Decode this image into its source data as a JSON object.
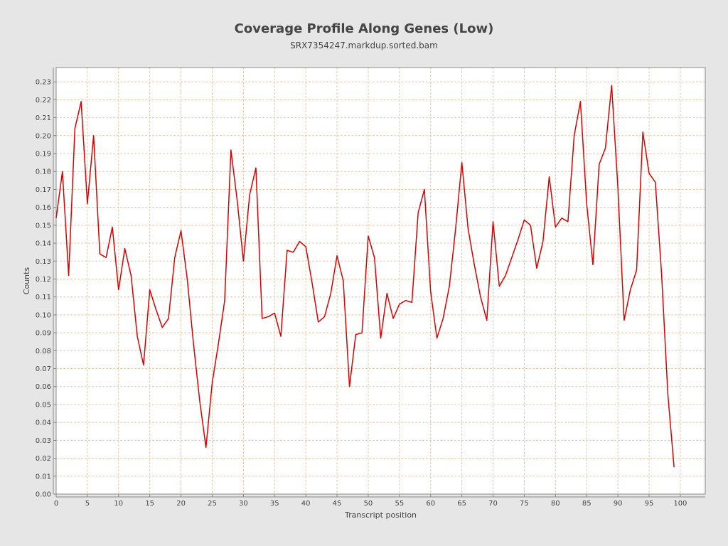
{
  "chart_data": {
    "type": "line",
    "title": "Coverage Profile Along Genes (Low)",
    "subtitle": "SRX7354247.markdup.sorted.bam",
    "xlabel": "Transcript position",
    "ylabel": "Counts",
    "xlim": [
      0,
      104
    ],
    "ylim": [
      0,
      0.238
    ],
    "x_ticks": [
      0,
      5,
      10,
      15,
      20,
      25,
      30,
      35,
      40,
      45,
      50,
      55,
      60,
      65,
      70,
      75,
      80,
      85,
      90,
      95,
      100
    ],
    "y_ticks": [
      "0.00",
      "0.01",
      "0.02",
      "0.03",
      "0.04",
      "0.05",
      "0.06",
      "0.07",
      "0.08",
      "0.09",
      "0.10",
      "0.11",
      "0.12",
      "0.13",
      "0.14",
      "0.15",
      "0.16",
      "0.17",
      "0.18",
      "0.19",
      "0.20",
      "0.21",
      "0.22",
      "0.23"
    ],
    "grid": true,
    "colors": {
      "line": "#dd0000",
      "grid": "#f0c8a8",
      "plot_background": "#ffffff",
      "page_background": "#e6e6e6"
    },
    "series": [
      {
        "x": [
          0,
          1,
          2,
          3,
          4,
          5,
          6,
          7,
          8,
          9,
          10,
          11,
          12,
          13,
          14,
          15,
          16,
          17,
          18,
          19,
          20,
          21,
          22,
          23,
          24,
          25,
          26,
          27,
          28,
          29,
          30,
          31,
          32,
          33,
          34,
          35,
          36,
          37,
          38,
          39,
          40,
          41,
          42,
          43,
          44,
          45,
          46,
          47,
          48,
          49,
          50,
          51,
          52,
          53,
          54,
          55,
          56,
          57,
          58,
          59,
          60,
          61,
          62,
          63,
          64,
          65,
          66,
          67,
          68,
          69,
          70,
          71,
          72,
          73,
          74,
          75,
          76,
          77,
          78,
          79,
          80,
          81,
          82,
          83,
          84,
          85,
          86,
          87,
          88,
          89,
          90,
          91,
          92,
          93,
          94,
          95,
          96,
          97,
          98,
          99
        ],
        "values": [
          0.154,
          0.18,
          0.122,
          0.204,
          0.219,
          0.162,
          0.2,
          0.134,
          0.132,
          0.149,
          0.114,
          0.137,
          0.122,
          0.088,
          0.072,
          0.114,
          0.103,
          0.093,
          0.098,
          0.132,
          0.147,
          0.12,
          0.084,
          0.052,
          0.026,
          0.062,
          0.084,
          0.108,
          0.192,
          0.164,
          0.13,
          0.167,
          0.182,
          0.098,
          0.099,
          0.101,
          0.088,
          0.136,
          0.135,
          0.141,
          0.138,
          0.118,
          0.096,
          0.099,
          0.112,
          0.133,
          0.119,
          0.06,
          0.089,
          0.09,
          0.144,
          0.132,
          0.087,
          0.112,
          0.098,
          0.106,
          0.108,
          0.107,
          0.157,
          0.17,
          0.113,
          0.087,
          0.098,
          0.116,
          0.148,
          0.185,
          0.148,
          0.128,
          0.11,
          0.097,
          0.152,
          0.116,
          0.122,
          0.132,
          0.142,
          0.153,
          0.15,
          0.126,
          0.141,
          0.177,
          0.149,
          0.154,
          0.152,
          0.2,
          0.219,
          0.162,
          0.128,
          0.184,
          0.193,
          0.228,
          0.171,
          0.097,
          0.114,
          0.125,
          0.202,
          0.179,
          0.174,
          0.123,
          0.056,
          0.015
        ]
      }
    ]
  }
}
